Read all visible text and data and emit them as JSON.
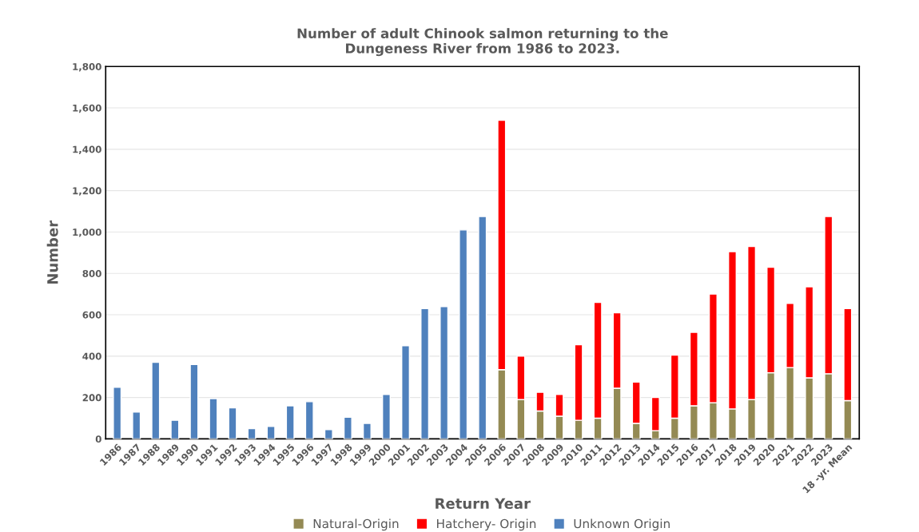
{
  "chart_data": {
    "type": "bar",
    "title": "Number of adult Chinook salmon returning to the\nDungeness River from 1986 to 2023.",
    "xlabel": "Return Year",
    "ylabel": "Number",
    "categories": [
      "1986",
      "1987",
      "1988",
      "1989",
      "1990",
      "1991",
      "1992",
      "1993",
      "1994",
      "1995",
      "1996",
      "1997",
      "1998",
      "1999",
      "2000",
      "2001",
      "2002",
      "2003",
      "2004",
      "2005",
      "2006",
      "2007",
      "2008",
      "2009",
      "2010",
      "2011",
      "2012",
      "2013",
      "2014",
      "2015",
      "2016",
      "2017",
      "2018",
      "2019",
      "2020",
      "2021",
      "2022",
      "2023",
      "18 -yr. Mean"
    ],
    "stacked": true,
    "series": [
      {
        "name": "Natural-Origin",
        "color": "#948a54",
        "values": [
          null,
          null,
          null,
          null,
          null,
          null,
          null,
          null,
          null,
          null,
          null,
          null,
          null,
          null,
          null,
          null,
          null,
          null,
          null,
          null,
          335,
          190,
          135,
          110,
          90,
          100,
          245,
          75,
          40,
          100,
          160,
          175,
          145,
          190,
          320,
          345,
          295,
          315,
          185
        ]
      },
      {
        "name": "Hatchery- Origin",
        "color": "#ff0000",
        "values": [
          null,
          null,
          null,
          null,
          null,
          null,
          null,
          null,
          null,
          null,
          null,
          null,
          null,
          null,
          null,
          null,
          null,
          null,
          null,
          null,
          1205,
          210,
          90,
          105,
          365,
          560,
          365,
          200,
          160,
          305,
          355,
          525,
          760,
          740,
          510,
          310,
          440,
          760,
          445
        ]
      },
      {
        "name": "Unknown Origin",
        "color": "#4f81bd",
        "values": [
          250,
          130,
          370,
          90,
          360,
          195,
          150,
          50,
          60,
          160,
          180,
          45,
          105,
          75,
          215,
          450,
          630,
          640,
          1010,
          1075,
          null,
          null,
          null,
          null,
          null,
          null,
          null,
          null,
          null,
          null,
          null,
          null,
          null,
          null,
          null,
          null,
          null,
          null,
          null
        ]
      }
    ],
    "ylim": [
      0,
      1800
    ],
    "yticks": [
      {
        "value": 0,
        "label": "0"
      },
      {
        "value": 200,
        "label": "200"
      },
      {
        "value": 400,
        "label": "400"
      },
      {
        "value": 600,
        "label": "600"
      },
      {
        "value": 800,
        "label": "800"
      },
      {
        "value": 1000,
        "label": "1,000"
      },
      {
        "value": 1200,
        "label": "1,200"
      },
      {
        "value": 1400,
        "label": "1,400"
      },
      {
        "value": 1600,
        "label": "1,600"
      },
      {
        "value": 1800,
        "label": "1,800"
      }
    ],
    "grid": "y",
    "legend": "bottom"
  }
}
